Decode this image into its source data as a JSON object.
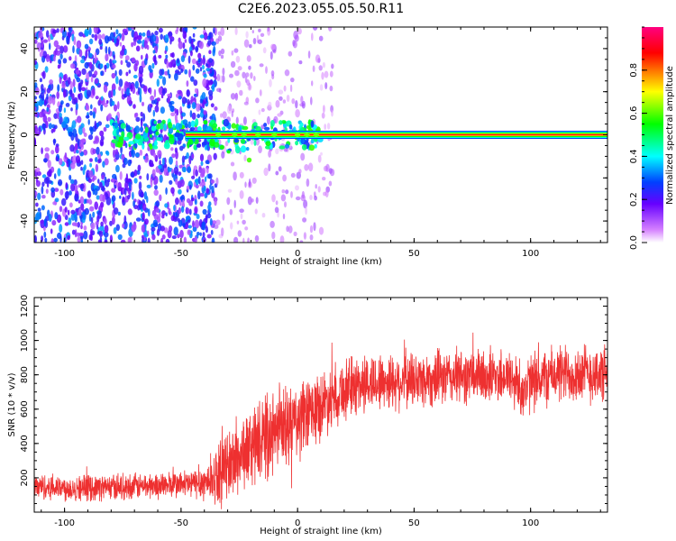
{
  "figure": {
    "title": "C2E6.2023.055.05.50.R11"
  },
  "chart_data": [
    {
      "type": "heatmap",
      "xlabel": "Height of straight line (km)",
      "ylabel": "Frequency (Hz)",
      "xlim": [
        -113,
        133
      ],
      "ylim": [
        -50,
        50
      ],
      "xticks": [
        -100,
        -50,
        0,
        50,
        100
      ],
      "yticks": [
        -40,
        -20,
        0,
        20,
        40
      ],
      "grid": false,
      "colorbar": {
        "label": "Normalized spectral amplitude",
        "range": [
          0,
          1
        ],
        "ticks": [
          0.0,
          0.2,
          0.4,
          0.6,
          0.8
        ],
        "colors": [
          "#ffffff",
          "#d580ff",
          "#6600ff",
          "#0040ff",
          "#00ffff",
          "#00ff00",
          "#ffff00",
          "#ff0000",
          "#ff0080"
        ]
      },
      "features": [
        {
          "kind": "scatter_noise",
          "x_range": [
            -113,
            -35
          ],
          "y_range": [
            -50,
            50
          ],
          "amplitude": 0.3
        },
        {
          "kind": "sparse_noise",
          "x_range": [
            -35,
            15
          ],
          "y_range": [
            -50,
            50
          ],
          "amplitude": 0.12
        },
        {
          "kind": "carrier_line",
          "y": 0,
          "x_range": [
            -48,
            133
          ],
          "amplitude": 0.9
        }
      ]
    },
    {
      "type": "line",
      "xlabel": "Height of straight line (km)",
      "ylabel": "SNR (10 * v/v)",
      "xlim": [
        -113,
        133
      ],
      "ylim": [
        0,
        1250
      ],
      "xticks": [
        -100,
        -50,
        0,
        50,
        100
      ],
      "yticks": [
        200,
        400,
        600,
        800,
        1000,
        1200
      ],
      "grid": false,
      "series": [
        {
          "color": "#ee3030",
          "x": [
            -113,
            -100,
            -80,
            -60,
            -45,
            -38,
            -33,
            -28,
            -22,
            -15,
            -8,
            0,
            8,
            15,
            25,
            35,
            50,
            60,
            70,
            80,
            90,
            98,
            100,
            110,
            120,
            133
          ],
          "mean": [
            150,
            140,
            145,
            155,
            165,
            180,
            230,
            290,
            360,
            420,
            480,
            520,
            600,
            680,
            740,
            760,
            770,
            780,
            790,
            790,
            795,
            700,
            760,
            800,
            810,
            800
          ],
          "spread": [
            90,
            90,
            90,
            90,
            100,
            140,
            220,
            260,
            260,
            280,
            300,
            280,
            240,
            220,
            210,
            200,
            200,
            190,
            190,
            190,
            190,
            210,
            200,
            200,
            210,
            200
          ]
        }
      ]
    }
  ]
}
